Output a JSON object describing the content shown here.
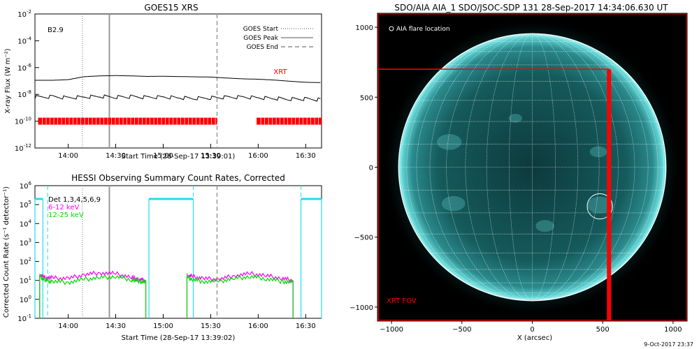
{
  "goes_panel": {
    "title": "GOES15 XRS",
    "class_label": "B2.9",
    "ylabel": "X-ray Flux (W m⁻²)",
    "xlabel": "Start Time (28-Sep-17 13:39:01)",
    "xrt_label": "XRT",
    "legend": [
      {
        "label": "GOES Start",
        "style": "dotted"
      },
      {
        "label": "GOES Peak",
        "style": "solid"
      },
      {
        "label": "GOES End",
        "style": "dashed"
      }
    ],
    "y_ticks": [
      {
        "exp": -2,
        "label": "10",
        "sup": "-2"
      },
      {
        "exp": -4,
        "label": "10",
        "sup": "-4"
      },
      {
        "exp": -6,
        "label": "10",
        "sup": "-6"
      },
      {
        "exp": -8,
        "label": "10",
        "sup": "-8"
      },
      {
        "exp": -10,
        "label": "10",
        "sup": "-10"
      },
      {
        "exp": -12,
        "label": "10",
        "sup": "-12"
      }
    ],
    "x_ticks": [
      {
        "min": 840,
        "label": "14:00"
      },
      {
        "min": 870,
        "label": "14:30"
      },
      {
        "min": 900,
        "label": "15:00"
      },
      {
        "min": 930,
        "label": "15:30"
      },
      {
        "min": 960,
        "label": "16:00"
      },
      {
        "min": 990,
        "label": "16:30"
      }
    ]
  },
  "hessi_panel": {
    "title": "HESSI Observing Summary Count Rates, Corrected",
    "ylabel": "Corrected Count Rate (s⁻¹ detector⁻¹)",
    "xlabel": "Start Time (28-Sep-17 13:39:02)",
    "legend": [
      {
        "label": "Det 1,3,4,5,6,9",
        "color": "#000000"
      },
      {
        "label": "6-12 keV",
        "color": "#ff00ff"
      },
      {
        "label": "12-25 keV",
        "color": "#00dd00"
      }
    ],
    "y_ticks": [
      {
        "exp": 6,
        "label": "10",
        "sup": "6"
      },
      {
        "exp": 5,
        "label": "10",
        "sup": "5"
      },
      {
        "exp": 4,
        "label": "10",
        "sup": "4"
      },
      {
        "exp": 3,
        "label": "10",
        "sup": "3"
      },
      {
        "exp": 2,
        "label": "10",
        "sup": "2"
      },
      {
        "exp": 1,
        "label": "10",
        "sup": "1"
      },
      {
        "exp": 0,
        "label": "10",
        "sup": "0"
      },
      {
        "exp": -1,
        "label": "10",
        "sup": "-1"
      }
    ],
    "x_ticks": [
      {
        "min": 840,
        "label": "14:00"
      },
      {
        "min": 870,
        "label": "14:30"
      },
      {
        "min": 900,
        "label": "15:00"
      },
      {
        "min": 930,
        "label": "15:30"
      },
      {
        "min": 960,
        "label": "16:00"
      },
      {
        "min": 990,
        "label": "16:30"
      }
    ]
  },
  "sdo_panel": {
    "title": "SDO/AIA AIA_1 SDO/JSOC-SDP 131 28-Sep-2017 14:34:06.630 UT",
    "legend_label": "AIA flare location",
    "fov_label": "XRT FOV",
    "xlabel": "X (arcsec)",
    "footer": "9-Oct-2017 23:37",
    "x_ticks": [
      {
        "v": -1000,
        "label": "−1000"
      },
      {
        "v": -500,
        "label": "−500"
      },
      {
        "v": 0,
        "label": "0"
      },
      {
        "v": 500,
        "label": "500"
      },
      {
        "v": 1000,
        "label": "1000"
      }
    ],
    "y_ticks": [
      {
        "v": 1000,
        "label": "1000"
      },
      {
        "v": 500,
        "label": "500"
      },
      {
        "v": 0,
        "label": "0"
      },
      {
        "v": -500,
        "label": "−500"
      },
      {
        "v": -1000,
        "label": "−1000"
      }
    ]
  },
  "chart_data": [
    {
      "type": "line",
      "title": "GOES15 XRS",
      "xlabel": "Start Time (28-Sep-17 13:39:01)",
      "ylabel": "X-ray Flux (W m⁻²)",
      "x_unit": "minutes since 00:00 UT",
      "xlim": [
        819,
        1000
      ],
      "ylim_exp": [
        -12,
        -2
      ],
      "y_scale": "log",
      "series": [
        {
          "color": "#000000",
          "x": [
            819,
            830,
            840,
            850,
            860,
            870,
            880,
            890,
            900,
            910,
            920,
            930,
            940,
            950,
            960,
            970,
            980,
            990,
            1000
          ],
          "log10_y": [
            -6.95,
            -6.95,
            -6.9,
            -6.68,
            -6.62,
            -6.6,
            -6.62,
            -6.66,
            -6.65,
            -6.67,
            -6.69,
            -6.71,
            -6.78,
            -6.84,
            -6.87,
            -6.93,
            -7.02,
            -7.1,
            -7.12
          ]
        },
        {
          "color": "#000000",
          "x": [
            819,
            830,
            840,
            850,
            860,
            870,
            880,
            890,
            900,
            910,
            920,
            930,
            940,
            950,
            960,
            970,
            980,
            990,
            1000
          ],
          "log10_y": [
            -8.2,
            -8.18,
            -8.25,
            -8.2,
            -8.15,
            -8.2,
            -8.18,
            -8.22,
            -8.2,
            -8.25,
            -8.3,
            -8.25,
            -8.22,
            -8.2,
            -8.25,
            -8.3,
            -8.35,
            -8.35,
            -8.4
          ]
        }
      ],
      "markers": {
        "goes_start": 849,
        "goes_peak": 866,
        "goes_end": 934
      },
      "xrt_coverage": [
        [
          821,
          934
        ],
        [
          959,
          1000
        ]
      ]
    },
    {
      "type": "line",
      "title": "HESSI Observing Summary Count Rates, Corrected",
      "xlabel": "Start Time (28-Sep-17 13:39:02)",
      "ylabel": "Corrected Count Rate (s⁻¹ detector⁻¹)",
      "x_unit": "minutes since 00:00 UT",
      "xlim": [
        819,
        1000
      ],
      "ylim_exp": [
        -1,
        6
      ],
      "y_scale": "log",
      "series": [
        {
          "name": "6-12 keV",
          "color": "#ff00ff",
          "x": [
            822,
            825,
            830,
            840,
            850,
            860,
            870,
            880,
            885,
            889,
            915,
            918,
            925,
            935,
            945,
            955,
            965,
            975,
            982
          ],
          "log10_y": [
            1.3,
            1.15,
            1.12,
            1.1,
            1.3,
            1.4,
            1.35,
            1.15,
            1.05,
            1.0,
            1.25,
            1.2,
            1.1,
            1.05,
            1.25,
            1.35,
            1.25,
            1.1,
            1.0
          ]
        },
        {
          "name": "12-25 keV",
          "color": "#00dd00",
          "x": [
            822,
            825,
            830,
            840,
            850,
            860,
            870,
            880,
            885,
            889,
            915,
            918,
            925,
            935,
            945,
            955,
            965,
            975,
            982
          ],
          "log10_y": [
            1.25,
            1.0,
            0.95,
            0.9,
            1.05,
            1.15,
            1.2,
            1.05,
            0.95,
            0.9,
            1.2,
            1.05,
            0.95,
            0.95,
            1.1,
            1.2,
            1.1,
            0.95,
            0.9
          ]
        }
      ],
      "cyan_levels": [
        [
          819,
          824,
          5.3
        ],
        [
          891,
          919,
          5.3
        ],
        [
          987,
          1000,
          5.3
        ]
      ],
      "cyan_dashed": [
        827,
        919,
        987
      ],
      "markers": {
        "goes_start": 849,
        "goes_peak": 866,
        "goes_end": 934
      }
    },
    {
      "type": "scatter",
      "title": "SDO/AIA AIA_1 SDO/JSOC-SDP 131 28-Sep-2017 14:34:06.630 UT",
      "xlabel": "X (arcsec)",
      "xlim": [
        -1100,
        1100
      ],
      "ylim": [
        -1100,
        1100
      ],
      "solar_radius": 950,
      "flare_location": {
        "x": 480,
        "y": -280,
        "r": 90
      },
      "xrt_fov": {
        "x0": -1095,
        "x1": 545,
        "y0": -1095,
        "y1": 700
      }
    }
  ]
}
